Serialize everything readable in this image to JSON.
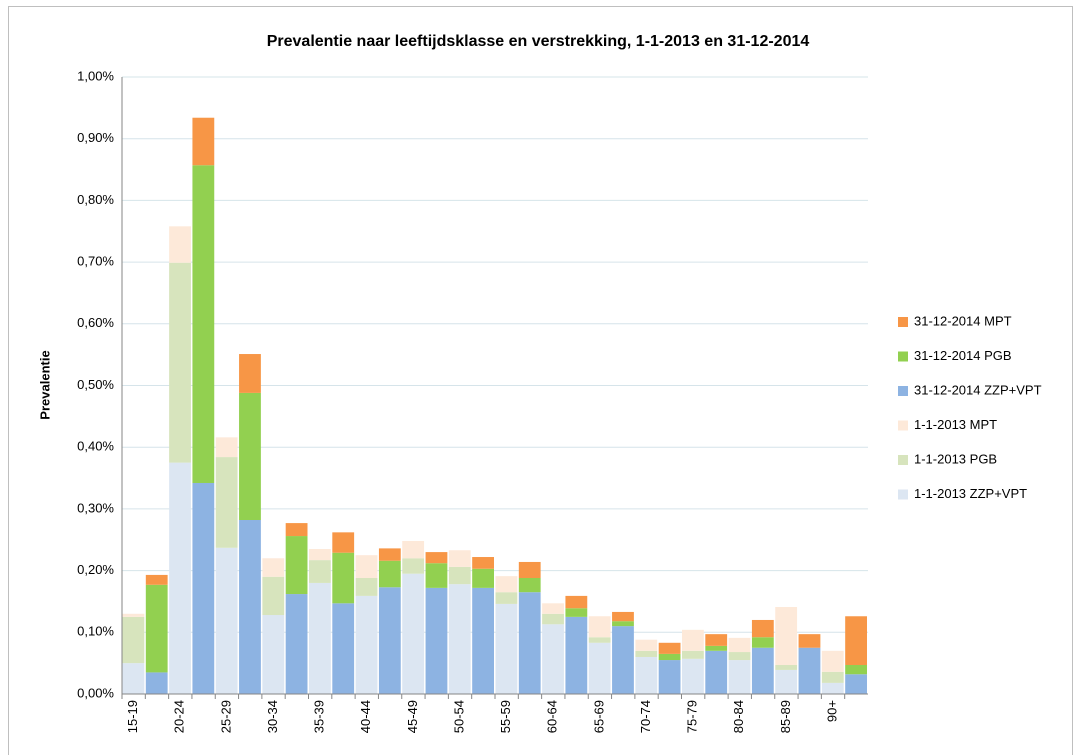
{
  "chart_data": {
    "type": "stacked_bar",
    "title": "Prevalentie naar leeftijdsklasse en verstrekking,  1-1-2013 en 31-12-2014",
    "ylabel": "Prevalentie",
    "categories": [
      "15-19",
      null,
      "20-24",
      null,
      "25-29",
      null,
      "30-34",
      null,
      "35-39",
      null,
      "40-44",
      null,
      "45-49",
      null,
      "50-54",
      null,
      "55-59",
      null,
      "60-64",
      null,
      "65-69",
      null,
      "70-74",
      null,
      "75-79",
      null,
      "80-84",
      null,
      "85-89",
      null,
      "90+",
      null
    ],
    "series": [
      {
        "name": "31-12-2014 MPT",
        "color": "#f79646",
        "values": [
          null,
          0.016,
          null,
          0.077,
          null,
          0.063,
          null,
          0.021,
          null,
          0.033,
          null,
          0.02,
          null,
          0.018,
          null,
          0.019,
          null,
          0.026,
          null,
          0.02,
          null,
          0.015,
          null,
          0.018,
          null,
          0.019,
          null,
          0.028,
          null,
          0.022,
          null,
          0.079
        ]
      },
      {
        "name": "31-12-2014 PGB",
        "color": "#92d050",
        "values": [
          null,
          0.142,
          null,
          0.515,
          null,
          0.206,
          null,
          0.094,
          null,
          0.082,
          null,
          0.043,
          null,
          0.04,
          null,
          0.031,
          null,
          0.023,
          null,
          0.014,
          null,
          0.008,
          null,
          0.01,
          null,
          0.008,
          null,
          0.017,
          null,
          0,
          null,
          0.015
        ]
      },
      {
        "name": "31-12-2014 ZZP+VPT",
        "color": "#8db3e2",
        "values": [
          null,
          0.035,
          null,
          0.342,
          null,
          0.282,
          null,
          0.162,
          null,
          0.147,
          null,
          0.173,
          null,
          0.172,
          null,
          0.172,
          null,
          0.165,
          null,
          0.125,
          null,
          0.11,
          null,
          0.055,
          null,
          0.07,
          null,
          0.075,
          null,
          0.075,
          null,
          0.032
        ]
      },
      {
        "name": "1-1-2013 MPT",
        "color": "#fde9d9",
        "values": [
          0.005,
          null,
          0.059,
          null,
          0.032,
          null,
          0.03,
          null,
          0.018,
          null,
          0.037,
          null,
          0.028,
          null,
          0.027,
          null,
          0.026,
          null,
          0.017,
          null,
          0.034,
          null,
          0.018,
          null,
          0.034,
          null,
          0.023,
          null,
          0.094,
          null,
          0.034,
          null
        ]
      },
      {
        "name": "1-1-2013 PGB",
        "color": "#d7e4bd",
        "values": [
          0.075,
          null,
          0.324,
          null,
          0.147,
          null,
          0.062,
          null,
          0.037,
          null,
          0.029,
          null,
          0.025,
          null,
          0.028,
          null,
          0.019,
          null,
          0.017,
          null,
          0.009,
          null,
          0.01,
          null,
          0.013,
          null,
          0.013,
          null,
          0.008,
          null,
          0.018,
          null
        ]
      },
      {
        "name": "1-1-2013 ZZP+VPT",
        "color": "#dce6f2",
        "values": [
          0.05,
          null,
          0.375,
          null,
          0.237,
          null,
          0.128,
          null,
          0.18,
          null,
          0.159,
          null,
          0.195,
          null,
          0.178,
          null,
          0.146,
          null,
          0.113,
          null,
          0.083,
          null,
          0.06,
          null,
          0.057,
          null,
          0.055,
          null,
          0.039,
          null,
          0.018,
          null
        ]
      }
    ],
    "ylim": [
      0,
      1
    ],
    "yticks": [
      {
        "value": 0,
        "label": "0,00%"
      },
      {
        "value": 0.1,
        "label": "0,10%"
      },
      {
        "value": 0.2,
        "label": "0,20%"
      },
      {
        "value": 0.3,
        "label": "0,30%"
      },
      {
        "value": 0.4,
        "label": "0,40%"
      },
      {
        "value": 0.5,
        "label": "0,50%"
      },
      {
        "value": 0.6,
        "label": "0,60%"
      },
      {
        "value": 0.7,
        "label": "0,70%"
      },
      {
        "value": 0.8,
        "label": "0,80%"
      },
      {
        "value": 0.9,
        "label": "0,90%"
      },
      {
        "value": 1,
        "label": "1,00%"
      }
    ],
    "grid": true,
    "legend": "right"
  }
}
